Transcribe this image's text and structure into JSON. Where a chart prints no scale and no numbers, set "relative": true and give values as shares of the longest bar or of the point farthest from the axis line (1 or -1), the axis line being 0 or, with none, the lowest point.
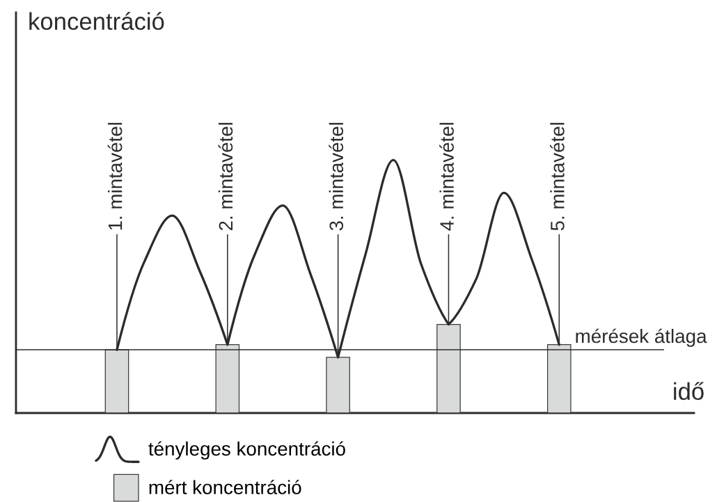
{
  "chart_data": {
    "type": "line",
    "relative": true,
    "xlabel": "idő",
    "ylabel": "koncentráció",
    "categories": [
      "1. mintavétel",
      null,
      null,
      null,
      "2. mintavétel",
      null,
      null,
      null,
      "3. mintavétel",
      null,
      null,
      null,
      "4. mintavétel",
      null,
      null,
      null,
      "5. mintavétel"
    ],
    "series": [
      {
        "name": "tényleges koncentráció",
        "color": "#2b2b2b",
        "values": [
          0.25,
          0.6,
          0.78,
          0.56,
          0.27,
          0.63,
          0.82,
          0.55,
          0.22,
          0.63,
          1,
          0.59,
          0.35,
          0.53,
          0.87,
          0.61,
          0.27
        ]
      },
      {
        "name": "mért koncentráció",
        "type": "bar",
        "color": "#d9dbda",
        "values": [
          0.25,
          null,
          null,
          null,
          0.27,
          null,
          null,
          null,
          0.22,
          null,
          null,
          null,
          0.35,
          null,
          null,
          null,
          0.27
        ]
      }
    ],
    "ref_lines": [
      {
        "axis": "y",
        "value": 0.25,
        "label": "mérések átlaga"
      }
    ],
    "legend": "bottom",
    "tick_labels": "x",
    "grid": "x",
    "line_style": "solid"
  }
}
